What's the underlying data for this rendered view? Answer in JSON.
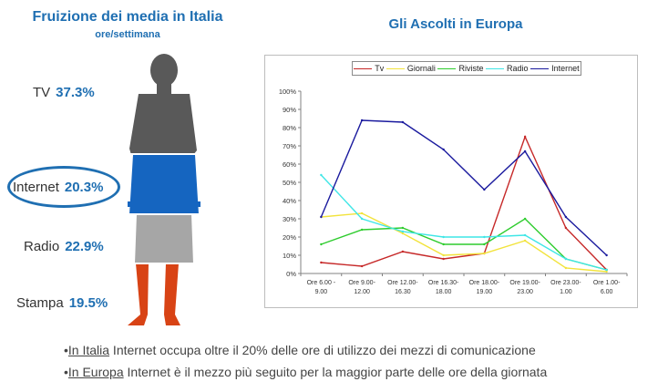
{
  "left": {
    "title": "Fruizione dei media in Italia",
    "subtitle": "ore/settimana",
    "stats": [
      {
        "label": "TV",
        "value": "37.3%"
      },
      {
        "label": "Internet",
        "value": "20.3%"
      },
      {
        "label": "Radio",
        "value": "22.9%"
      },
      {
        "label": "Stampa",
        "value": "19.5%"
      }
    ],
    "figure_colors": {
      "tv": "#595959",
      "internet": "#1565c0",
      "radio": "#a6a6a6",
      "stampa": "#d84315"
    }
  },
  "bullets": [
    {
      "prefix": "•",
      "underlined": "In Italia",
      "rest": " Internet occupa oltre il 20% delle ore di utilizzo dei mezzi di comunicazione"
    },
    {
      "prefix": "•",
      "underlined": "In Europa",
      "rest": " Internet è il mezzo più seguito per la maggior parte delle ore della giornata"
    }
  ],
  "chart_data": {
    "type": "line",
    "title": "Gli Ascolti in Europa",
    "categories": [
      "Ore 6.00 - 9.00",
      "Ore 9.00- 12.00",
      "Ore 12.00- 16.30",
      "Ore 16.30- 18.00",
      "Ore 18.00- 19.00",
      "Ore 19.00- 23.00",
      "Ore 23.00- 1.00",
      "Ore 1.00- 6.00"
    ],
    "category_lines": [
      [
        "Ore 6.00 -",
        "9.00"
      ],
      [
        "Ore 9.00-",
        "12.00"
      ],
      [
        "Ore 12.00-",
        "16.30"
      ],
      [
        "Ore 16.30-",
        "18.00"
      ],
      [
        "Ore 18.00-",
        "19.00"
      ],
      [
        "Ore 19.00-",
        "23.00"
      ],
      [
        "Ore 23.00-",
        "1.00"
      ],
      [
        "Ore 1.00-",
        "6.00"
      ]
    ],
    "ylim": [
      0,
      100
    ],
    "yticks": [
      "0%",
      "10%",
      "20%",
      "30%",
      "40%",
      "50%",
      "60%",
      "70%",
      "80%",
      "90%",
      "100%"
    ],
    "legend_position": "top",
    "grid": false,
    "series": [
      {
        "name": "Tv",
        "color": "#c62828",
        "values": [
          6,
          4,
          12,
          8,
          11,
          75,
          25,
          2
        ]
      },
      {
        "name": "Giornali",
        "color": "#f2e33c",
        "values": [
          31,
          33,
          22,
          10,
          11,
          18,
          3,
          1
        ]
      },
      {
        "name": "Riviste",
        "color": "#2ecc2e",
        "values": [
          16,
          24,
          25,
          16,
          16,
          30,
          8,
          2
        ]
      },
      {
        "name": "Radio",
        "color": "#3fe6e6",
        "values": [
          54,
          30,
          23,
          20,
          20,
          21,
          8,
          2
        ]
      },
      {
        "name": "Internet",
        "color": "#1a1a9e",
        "values": [
          31,
          84,
          83,
          68,
          46,
          67,
          31,
          10
        ]
      }
    ]
  }
}
